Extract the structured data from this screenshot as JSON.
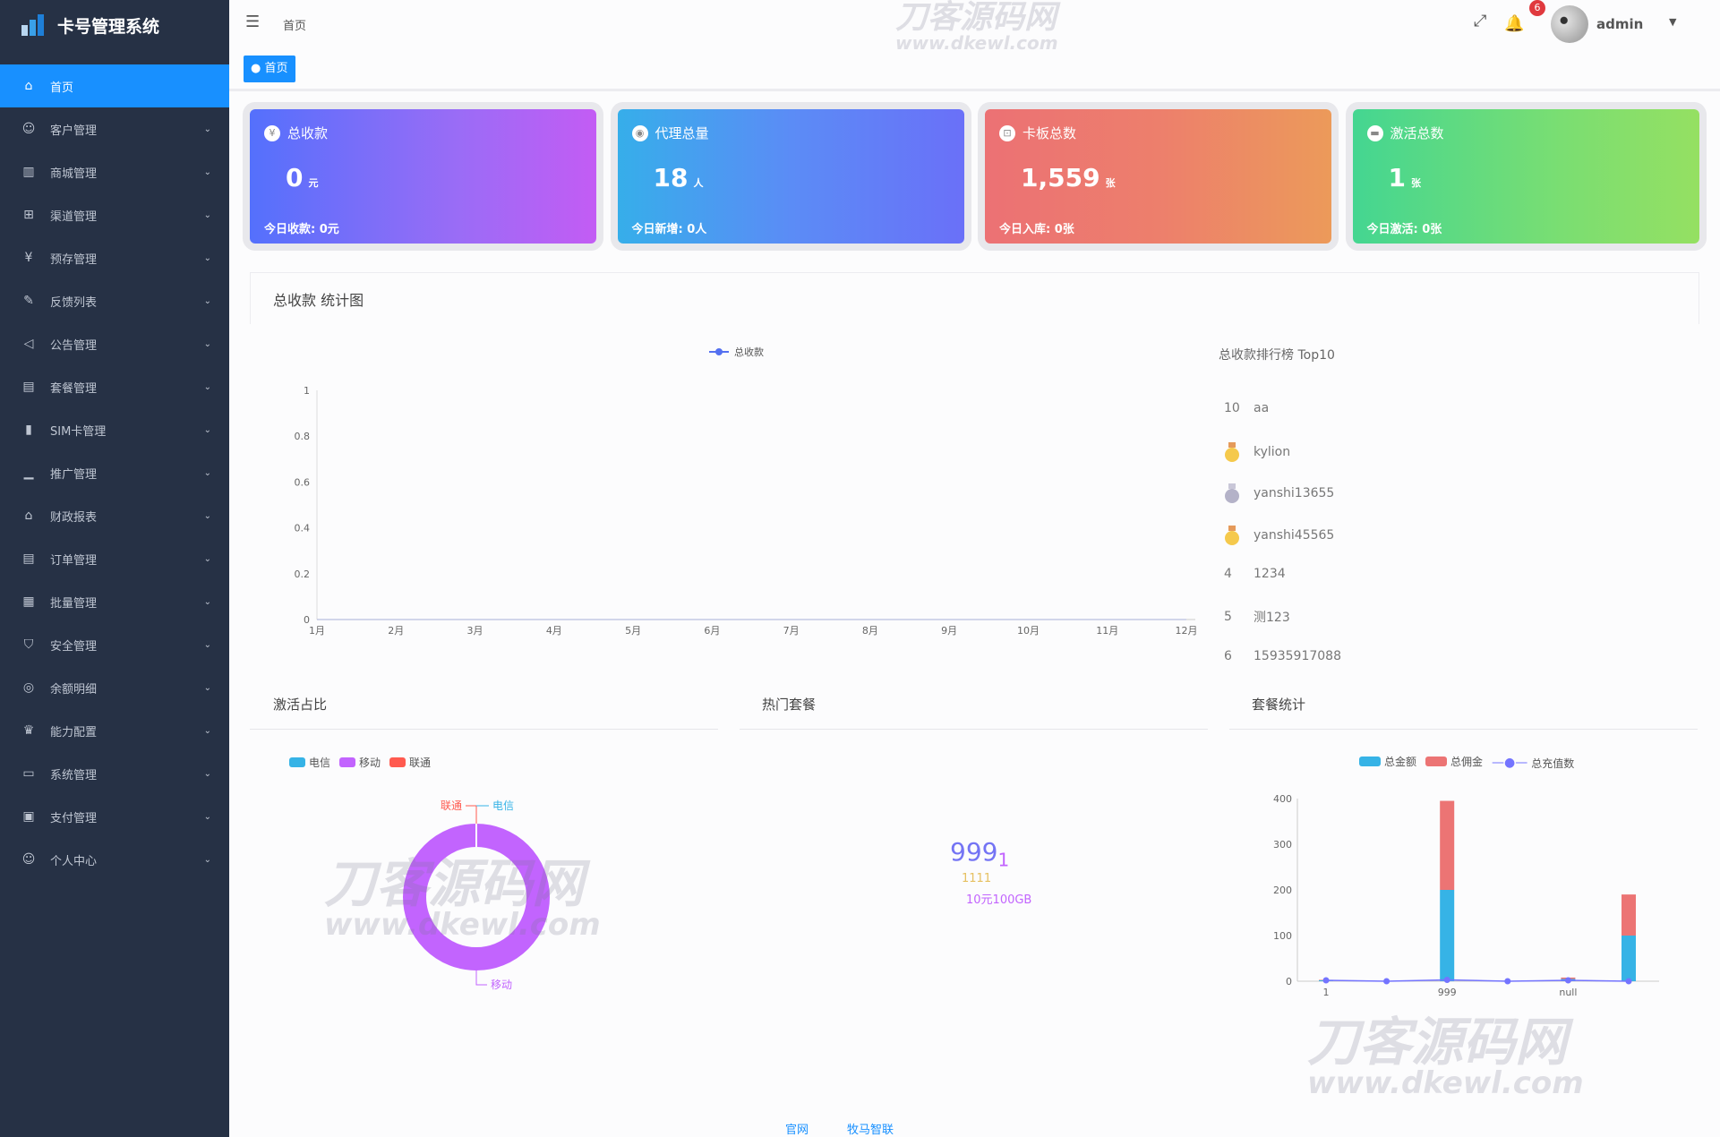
{
  "app": {
    "title": "卡号管理系统"
  },
  "sidebar": {
    "items": [
      {
        "label": "首页",
        "icon": "home-icon",
        "active": true
      },
      {
        "label": "客户管理",
        "icon": "users-icon"
      },
      {
        "label": "商城管理",
        "icon": "shop-icon"
      },
      {
        "label": "渠道管理",
        "icon": "sitemap-icon"
      },
      {
        "label": "预存管理",
        "icon": "deposit-icon"
      },
      {
        "label": "反馈列表",
        "icon": "feedback-icon"
      },
      {
        "label": "公告管理",
        "icon": "speaker-icon"
      },
      {
        "label": "套餐管理",
        "icon": "package-icon"
      },
      {
        "label": "SIM卡管理",
        "icon": "sim-icon"
      },
      {
        "label": "推广管理",
        "icon": "chart-icon"
      },
      {
        "label": "财政报表",
        "icon": "bank-icon"
      },
      {
        "label": "订单管理",
        "icon": "order-icon"
      },
      {
        "label": "批量管理",
        "icon": "grid-icon"
      },
      {
        "label": "安全管理",
        "icon": "shield-icon"
      },
      {
        "label": "余额明细",
        "icon": "balance-icon"
      },
      {
        "label": "能力配置",
        "icon": "trophy-icon"
      },
      {
        "label": "系统管理",
        "icon": "monitor-icon"
      },
      {
        "label": "支付管理",
        "icon": "wallet-icon"
      },
      {
        "label": "个人中心",
        "icon": "user-icon"
      }
    ]
  },
  "header": {
    "breadcrumb": "首页",
    "notifications": "6",
    "user": "admin",
    "tag": "首页"
  },
  "watermark": {
    "cn": "刀客源码网",
    "url": "www.dkewl.com"
  },
  "cards": [
    {
      "title": "总收款",
      "value": "0",
      "unit": "元",
      "footer": "今日收款:  0元",
      "icon": "yen-icon"
    },
    {
      "title": "代理总量",
      "value": "18",
      "unit": "人",
      "footer": "今日新增:  0人",
      "icon": "eye-icon"
    },
    {
      "title": "卡板总数",
      "value": "1,559",
      "unit": "张",
      "footer": "今日入库:  0张",
      "icon": "cart-icon"
    },
    {
      "title": "激活总数",
      "value": "1",
      "unit": "张",
      "footer": "今日激活:  0张",
      "icon": "card-icon"
    }
  ],
  "stats": {
    "title": "总收款 统计图"
  },
  "chart_data": [
    {
      "type": "line",
      "legend": [
        "总收款"
      ],
      "categories": [
        "1月",
        "2月",
        "3月",
        "4月",
        "5月",
        "6月",
        "7月",
        "8月",
        "9月",
        "10月",
        "11月",
        "12月"
      ],
      "series": [
        {
          "name": "总收款",
          "values": [
            0,
            0,
            0,
            0,
            0,
            0,
            0,
            0,
            0,
            0,
            0,
            0
          ]
        }
      ],
      "yticks": [
        "0",
        "0.2",
        "0.4",
        "0.6",
        "0.8",
        "1"
      ],
      "ylim": [
        0,
        1
      ],
      "color": "#5470f0"
    },
    {
      "type": "pie",
      "title": "激活占比",
      "legend": [
        "电信",
        "移动",
        "联通"
      ],
      "slices": [
        {
          "name": "电信",
          "value": 0,
          "color": "#36b3e6"
        },
        {
          "name": "移动",
          "value": 1,
          "color": "#c264fe"
        },
        {
          "name": "联通",
          "value": 0,
          "color": "#ff5a4f"
        }
      ]
    },
    {
      "type": "bar",
      "title": "套餐统计",
      "legend": [
        "总金额",
        "总佣金",
        "总充值数"
      ],
      "categories": [
        "1",
        "",
        "999",
        "",
        "null",
        ""
      ],
      "series": [
        {
          "name": "总金额",
          "values": [
            2,
            0,
            200,
            0,
            5,
            100
          ],
          "color": "#36b3e6"
        },
        {
          "name": "总佣金",
          "values": [
            1,
            0,
            195,
            0,
            3,
            90
          ],
          "color": "#ec7474"
        },
        {
          "name": "总充值数",
          "values": [
            2,
            0,
            3,
            0,
            2,
            0
          ],
          "color": "#7474ff"
        }
      ],
      "yticks": [
        "0",
        "100",
        "200",
        "300",
        "400"
      ],
      "ylim": [
        0,
        400
      ]
    }
  ],
  "ranking": {
    "title": "总收款排行榜 Top10",
    "rows": [
      {
        "rank": "10",
        "name": "aa"
      },
      {
        "rank": "1",
        "name": "kylion",
        "medal": "gold"
      },
      {
        "rank": "2",
        "name": "yanshi13655",
        "medal": "silver"
      },
      {
        "rank": "3",
        "name": "yanshi45565",
        "medal": "bronze"
      },
      {
        "rank": "4",
        "name": "1234"
      },
      {
        "rank": "5",
        "name": "测123"
      },
      {
        "rank": "6",
        "name": "15935917088"
      }
    ]
  },
  "hot": {
    "title": "热门套餐",
    "name": "999",
    "sub": "1",
    "line2": "1111",
    "line3": "10元100GB"
  },
  "footer": {
    "links": [
      "官网",
      "牧马智联"
    ]
  }
}
